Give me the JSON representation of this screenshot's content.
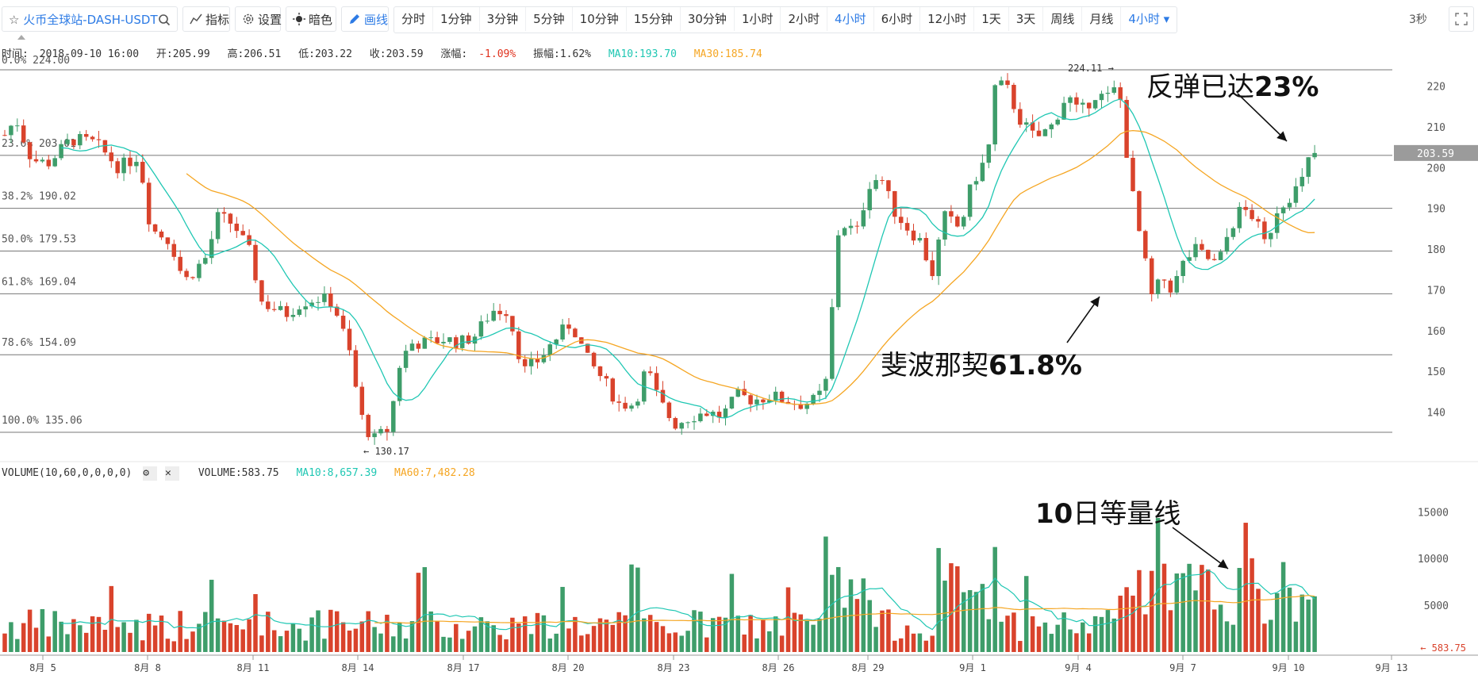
{
  "toolbar": {
    "symbol": "火币全球站-DASH-USDT",
    "indicators_label": "指标",
    "settings_label": "设置",
    "theme_label": "暗色",
    "draw_label": "画线",
    "periods": [
      "分时",
      "1分钟",
      "3分钟",
      "5分钟",
      "10分钟",
      "15分钟",
      "30分钟",
      "1小时",
      "2小时",
      "4小时",
      "6小时",
      "12小时",
      "1天",
      "3天",
      "周线",
      "月线"
    ],
    "active_period": "4小时",
    "period_select": "4小时",
    "refresh": "3秒"
  },
  "info": {
    "time_label": "时间:",
    "time": "2018-09-10 16:00",
    "open": "开:205.99",
    "high": "高:206.51",
    "low": "低:203.22",
    "close": "收:203.59",
    "change_label": "涨幅:",
    "change": "-1.09%",
    "amplitude": "振幅:1.62%",
    "ma10": "MA10:193.70",
    "ma30": "MA30:185.74"
  },
  "volume_info": {
    "title": "VOLUME(10,60,0,0,0,0)",
    "volume": "VOLUME:583.75",
    "ma10": "MA10:8,657.39",
    "ma60": "MA60:7,482.28"
  },
  "fib_levels": [
    {
      "label": "0.0% 224.00",
      "price": 224.0
    },
    {
      "label": "23.6% 203.01",
      "price": 203.01
    },
    {
      "label": "38.2% 190.02",
      "price": 190.02
    },
    {
      "label": "50.0% 179.53",
      "price": 179.53
    },
    {
      "label": "61.8% 169.04",
      "price": 169.04
    },
    {
      "label": "78.6% 154.09",
      "price": 154.09
    },
    {
      "label": "100.0% 135.06",
      "price": 135.06
    }
  ],
  "price_axis": [
    "220",
    "210",
    "200",
    "190",
    "180",
    "170",
    "160",
    "150",
    "140"
  ],
  "current_price": "203.59",
  "high_marker": "224.11",
  "low_marker": "130.17",
  "volume_axis": [
    "15000",
    "10000",
    "5000"
  ],
  "current_volume": "583.75",
  "date_axis": [
    "8月 5",
    "8月 8",
    "8月 11",
    "8月 14",
    "8月 17",
    "8月 20",
    "8月 23",
    "8月 26",
    "8月 29",
    "9月 1",
    "9月 4",
    "9月 7",
    "9月 10",
    "9月 13"
  ],
  "annotations": {
    "rebound_prefix": "反弹已达",
    "rebound_value": "23%",
    "fib_prefix": "斐波那契",
    "fib_value": "61.8%",
    "ma_value": "10",
    "ma_suffix": "日等量线"
  },
  "colors": {
    "up": "#3e9d6a",
    "down": "#d9432c",
    "ma10": "#1fc7b3",
    "ma30": "#f5a623",
    "accent": "#2d7be5"
  }
}
